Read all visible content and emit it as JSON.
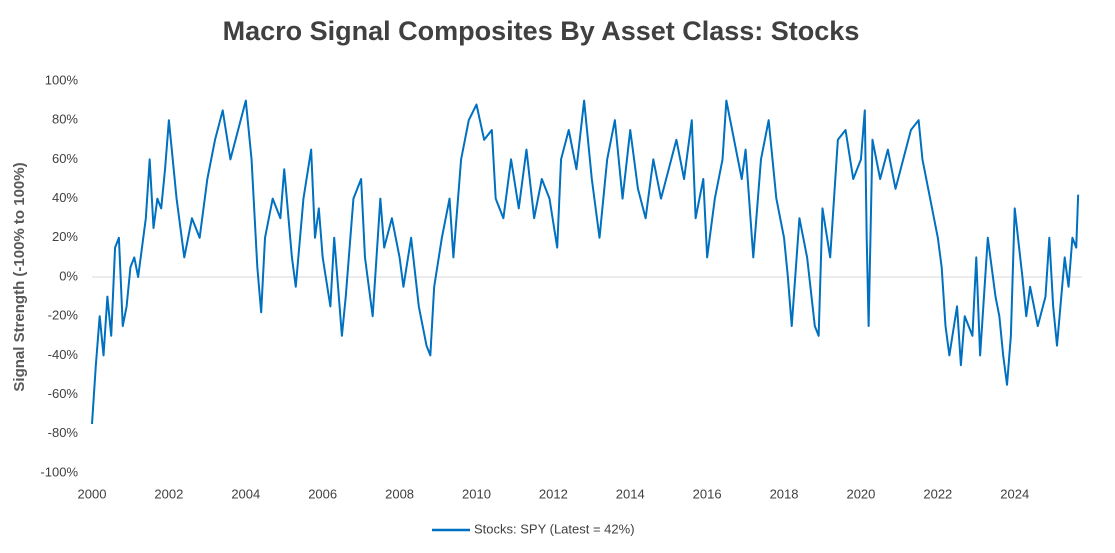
{
  "chart_data": {
    "type": "line",
    "title": "Macro Signal Composites By Asset Class: Stocks",
    "y_label": "Signal Strength (-100% to 100%)",
    "xlim": [
      2000,
      2025.75
    ],
    "xticks": [
      2000,
      2002,
      2004,
      2006,
      2008,
      2010,
      2012,
      2014,
      2016,
      2018,
      2020,
      2022,
      2024
    ],
    "ylim": [
      -100,
      100
    ],
    "yticks": [
      {
        "value": -100,
        "label": "-100%"
      },
      {
        "value": -80,
        "label": "-80%"
      },
      {
        "value": -60,
        "label": "-60%"
      },
      {
        "value": -40,
        "label": "-40%"
      },
      {
        "value": -20,
        "label": "-20%"
      },
      {
        "value": 0,
        "label": "0%"
      },
      {
        "value": 20,
        "label": "20%"
      },
      {
        "value": 40,
        "label": "40%"
      },
      {
        "value": 60,
        "label": "60%"
      },
      {
        "value": 80,
        "label": "80%"
      },
      {
        "value": 100,
        "label": "100%"
      }
    ],
    "grid": false,
    "legend": "bottom",
    "x": [
      2000.0,
      2000.1,
      2000.2,
      2000.3,
      2000.4,
      2000.5,
      2000.6,
      2000.7,
      2000.8,
      2000.9,
      2001.0,
      2001.1,
      2001.2,
      2001.3,
      2001.4,
      2001.5,
      2001.6,
      2001.7,
      2001.8,
      2001.9,
      2002.0,
      2002.2,
      2002.4,
      2002.6,
      2002.8,
      2003.0,
      2003.2,
      2003.4,
      2003.6,
      2003.8,
      2004.0,
      2004.15,
      2004.3,
      2004.4,
      2004.5,
      2004.7,
      2004.9,
      2005.0,
      2005.2,
      2005.3,
      2005.5,
      2005.7,
      2005.8,
      2005.9,
      2006.0,
      2006.2,
      2006.3,
      2006.5,
      2006.6,
      2006.8,
      2007.0,
      2007.1,
      2007.3,
      2007.5,
      2007.6,
      2007.8,
      2008.0,
      2008.1,
      2008.3,
      2008.5,
      2008.7,
      2008.8,
      2008.9,
      2009.1,
      2009.3,
      2009.4,
      2009.6,
      2009.8,
      2010.0,
      2010.2,
      2010.4,
      2010.5,
      2010.7,
      2010.9,
      2011.1,
      2011.3,
      2011.5,
      2011.7,
      2011.9,
      2012.1,
      2012.2,
      2012.4,
      2012.6,
      2012.8,
      2013.0,
      2013.2,
      2013.4,
      2013.6,
      2013.8,
      2014.0,
      2014.2,
      2014.4,
      2014.6,
      2014.8,
      2015.0,
      2015.2,
      2015.4,
      2015.6,
      2015.7,
      2015.9,
      2016.0,
      2016.2,
      2016.4,
      2016.5,
      2016.7,
      2016.9,
      2017.0,
      2017.2,
      2017.4,
      2017.6,
      2017.8,
      2018.0,
      2018.1,
      2018.2,
      2018.4,
      2018.6,
      2018.8,
      2018.9,
      2019.0,
      2019.2,
      2019.4,
      2019.6,
      2019.8,
      2020.0,
      2020.1,
      2020.15,
      2020.2,
      2020.3,
      2020.5,
      2020.7,
      2020.9,
      2021.1,
      2021.3,
      2021.5,
      2021.6,
      2021.8,
      2022.0,
      2022.1,
      2022.2,
      2022.3,
      2022.5,
      2022.6,
      2022.7,
      2022.9,
      2023.0,
      2023.1,
      2023.3,
      2023.5,
      2023.6,
      2023.7,
      2023.8,
      2023.9,
      2024.0,
      2024.2,
      2024.3,
      2024.4,
      2024.6,
      2024.8,
      2024.9,
      2025.0,
      2025.1,
      2025.3,
      2025.4,
      2025.5,
      2025.6,
      2025.65
    ],
    "series": [
      {
        "name": "Stocks: SPY (Latest = 42%)",
        "color": "#0070c0",
        "values": [
          -75,
          -45,
          -20,
          -40,
          -10,
          -30,
          15,
          20,
          -25,
          -15,
          5,
          10,
          0,
          15,
          30,
          60,
          25,
          40,
          35,
          55,
          80,
          40,
          10,
          30,
          20,
          50,
          70,
          85,
          60,
          75,
          90,
          60,
          5,
          -18,
          20,
          40,
          30,
          55,
          10,
          -5,
          40,
          65,
          20,
          35,
          10,
          -15,
          20,
          -30,
          -10,
          40,
          50,
          10,
          -20,
          40,
          15,
          30,
          10,
          -5,
          20,
          -15,
          -35,
          -40,
          -5,
          20,
          40,
          10,
          60,
          80,
          88,
          70,
          75,
          40,
          30,
          60,
          35,
          65,
          30,
          50,
          40,
          15,
          60,
          75,
          55,
          90,
          50,
          20,
          60,
          80,
          40,
          75,
          45,
          30,
          60,
          40,
          55,
          70,
          50,
          80,
          30,
          50,
          10,
          40,
          60,
          90,
          70,
          50,
          65,
          10,
          60,
          80,
          40,
          20,
          0,
          -25,
          30,
          10,
          -25,
          -30,
          35,
          10,
          70,
          75,
          50,
          60,
          85,
          20,
          -25,
          70,
          50,
          65,
          45,
          60,
          75,
          80,
          60,
          40,
          20,
          5,
          -25,
          -40,
          -15,
          -45,
          -20,
          -30,
          10,
          -40,
          20,
          -10,
          -20,
          -40,
          -55,
          -30,
          35,
          0,
          -20,
          -5,
          -25,
          -10,
          20,
          -15,
          -35,
          10,
          -5,
          20,
          15,
          42
        ]
      }
    ]
  }
}
